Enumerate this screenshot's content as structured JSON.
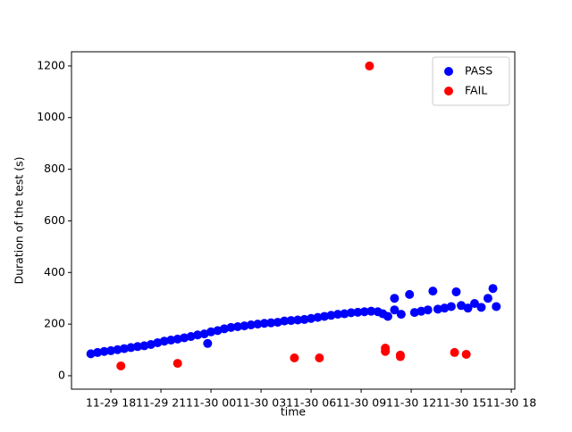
{
  "chart_data": {
    "type": "scatter",
    "xlabel": "time",
    "ylabel": "Duration of the test (s)",
    "xlim": [
      15.64,
      42.21
    ],
    "ylim": [
      -52,
      1255
    ],
    "xticks": [
      {
        "value": 18,
        "label": "11-29 18"
      },
      {
        "value": 21,
        "label": "11-29 21"
      },
      {
        "value": 24,
        "label": "11-30 00"
      },
      {
        "value": 27,
        "label": "11-30 03"
      },
      {
        "value": 30,
        "label": "11-30 06"
      },
      {
        "value": 33,
        "label": "11-30 09"
      },
      {
        "value": 36,
        "label": "11-30 12"
      },
      {
        "value": 39,
        "label": "11-30 15"
      },
      {
        "value": 42,
        "label": "11-30 18"
      }
    ],
    "yticks": [
      0,
      200,
      400,
      600,
      800,
      1000,
      1200
    ],
    "legend": "upper right",
    "series": [
      {
        "name": "PASS",
        "color": "#0000ff",
        "x": [
          16.8,
          17.2,
          17.6,
          18.0,
          18.4,
          18.8,
          19.2,
          19.6,
          20.0,
          20.4,
          20.8,
          21.2,
          21.6,
          22.0,
          22.4,
          22.8,
          23.2,
          23.6,
          23.8,
          24.0,
          24.4,
          24.8,
          25.2,
          25.6,
          26.0,
          26.4,
          26.8,
          27.2,
          27.6,
          28.0,
          28.4,
          28.8,
          29.2,
          29.6,
          30.0,
          30.4,
          30.8,
          31.2,
          31.6,
          32.0,
          32.4,
          32.8,
          33.2,
          33.6,
          34.0,
          34.3,
          34.6,
          35.0,
          35.0,
          35.4,
          35.9,
          36.2,
          36.6,
          37.0,
          37.3,
          37.6,
          38.0,
          38.4,
          38.7,
          39.0,
          39.4,
          39.8,
          40.2,
          40.6,
          40.9,
          41.1
        ],
        "values": [
          85,
          90,
          94,
          97,
          101,
          105,
          109,
          113,
          116,
          121,
          128,
          134,
          138,
          142,
          147,
          152,
          158,
          162,
          125,
          170,
          175,
          182,
          187,
          190,
          193,
          197,
          200,
          203,
          205,
          207,
          212,
          214,
          216,
          218,
          222,
          226,
          230,
          234,
          238,
          240,
          244,
          246,
          248,
          250,
          248,
          240,
          230,
          255,
          300,
          238,
          315,
          245,
          250,
          255,
          328,
          258,
          262,
          268,
          325,
          272,
          262,
          280,
          265,
          300,
          338,
          268
        ]
      },
      {
        "name": "FAIL",
        "color": "#ff0000",
        "x": [
          18.6,
          22.0,
          29.0,
          30.5,
          33.5,
          34.45,
          34.45,
          35.35,
          35.35,
          38.6,
          39.3
        ],
        "values": [
          38,
          48,
          69,
          69,
          1200,
          107,
          94,
          80,
          74,
          90,
          83
        ]
      }
    ]
  }
}
